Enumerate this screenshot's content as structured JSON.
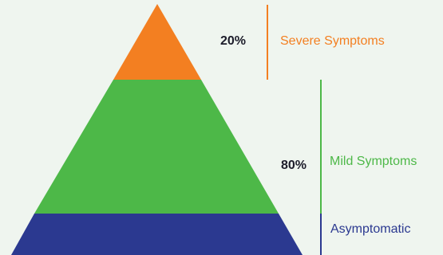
{
  "diagram": {
    "layers": [
      {
        "label": "Severe Symptoms",
        "color": "#f37f21",
        "icon": "pyramid-tier"
      },
      {
        "label": "Mild Symptoms",
        "color": "#4db848",
        "icon": "pyramid-tier"
      },
      {
        "label": "Asymptomatic",
        "color": "#2b3990",
        "icon": "pyramid-tier"
      }
    ],
    "percentages": {
      "severe": "20%",
      "mild_and_asymptomatic": "80%"
    }
  }
}
